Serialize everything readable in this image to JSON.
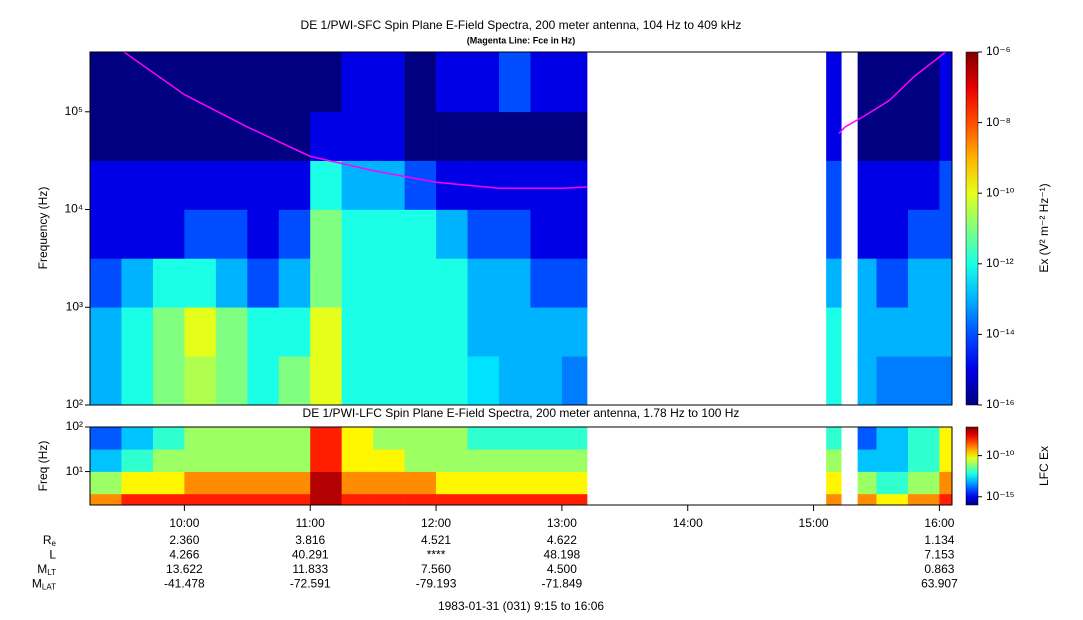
{
  "chart_data": [
    {
      "type": "heatmap",
      "title": "DE 1/PWI-SFC  Spin Plane E-Field Spectra, 200 meter antenna, 104 Hz to 409 kHz",
      "subtitle": "(Magenta Line: Fce in Hz)",
      "y_label": "Frequency (Hz)",
      "xlim": [
        9.25,
        16.1
      ],
      "ylim": [
        100,
        409000
      ],
      "log_y": true,
      "yticks": [
        {
          "value": 100,
          "label": "10²"
        },
        {
          "value": 1000,
          "label": "10³"
        },
        {
          "value": 10000,
          "label": "10⁴"
        },
        {
          "value": 100000,
          "label": "10⁵"
        }
      ],
      "xbins": [
        9.25,
        9.5,
        9.75,
        10,
        10.25,
        10.5,
        10.75,
        11,
        11.25,
        11.5,
        11.75,
        12,
        12.25,
        12.5,
        12.75,
        13,
        13.2,
        15.1,
        15.22,
        15.35,
        15.5,
        15.75,
        16,
        16.1
      ],
      "ybins": [
        100,
        316,
        1000,
        3162,
        10000,
        31623,
        100000,
        409000
      ],
      "z": [
        [
          1e-13,
          1e-12,
          1e-11,
          3e-11,
          1e-11,
          1e-12,
          1e-11,
          1e-10,
          1e-12,
          1e-12,
          1e-12,
          1e-12,
          3e-13,
          1e-13,
          1e-13,
          3e-14,
          null,
          1e-12,
          null,
          1e-13,
          3e-14,
          3e-14,
          3e-14
        ],
        [
          1e-13,
          1e-12,
          1e-11,
          1e-10,
          1e-11,
          1e-12,
          1e-12,
          1e-10,
          1e-12,
          1e-12,
          1e-12,
          1e-12,
          1e-13,
          1e-13,
          1e-13,
          1e-13,
          null,
          1e-12,
          null,
          1e-13,
          1e-13,
          1e-13,
          1e-13
        ],
        [
          1e-14,
          1e-13,
          1e-12,
          1e-12,
          1e-13,
          1e-14,
          1e-13,
          1e-11,
          1e-12,
          1e-12,
          1e-12,
          1e-12,
          1e-13,
          1e-13,
          1e-14,
          1e-14,
          null,
          1e-13,
          null,
          1e-13,
          1e-14,
          1e-13,
          1e-13
        ],
        [
          1e-15,
          1e-15,
          1e-15,
          1e-14,
          1e-14,
          1e-15,
          1e-14,
          1e-11,
          1e-12,
          1e-12,
          1e-12,
          1e-13,
          1e-14,
          1e-14,
          1e-15,
          1e-15,
          null,
          1e-14,
          null,
          1e-15,
          1e-15,
          1e-14,
          1e-14
        ],
        [
          1e-15,
          1e-15,
          1e-15,
          1e-15,
          1e-15,
          1e-15,
          1e-15,
          1e-12,
          1e-13,
          1e-13,
          1e-14,
          1e-15,
          1e-15,
          1e-15,
          1e-15,
          1e-15,
          null,
          1e-14,
          null,
          1e-15,
          1e-15,
          1e-15,
          1e-14
        ],
        [
          1e-16,
          1e-16,
          1e-16,
          1e-16,
          1e-16,
          1e-16,
          1e-16,
          1e-15,
          1e-15,
          1e-15,
          1e-16,
          1e-16,
          1e-16,
          1e-16,
          1e-16,
          1e-16,
          null,
          1e-15,
          null,
          1e-16,
          1e-16,
          1e-16,
          1e-15
        ],
        [
          1e-16,
          1e-16,
          1e-16,
          1e-16,
          1e-16,
          1e-16,
          1e-16,
          1e-16,
          1e-15,
          1e-15,
          1e-16,
          1e-15,
          1e-15,
          1e-14,
          1e-15,
          1e-15,
          null,
          1e-15,
          null,
          1e-16,
          1e-16,
          1e-16,
          1e-15
        ]
      ],
      "colorbar": {
        "label": "Ex (V² m⁻² Hz⁻¹)",
        "lim": [
          1e-16,
          1e-06
        ],
        "log": true,
        "ticks": [
          {
            "value": 1e-16,
            "label": "10⁻¹⁶"
          },
          {
            "value": 1e-14,
            "label": "10⁻¹⁴"
          },
          {
            "value": 1e-12,
            "label": "10⁻¹²"
          },
          {
            "value": 1e-10,
            "label": "10⁻¹⁰"
          },
          {
            "value": 1e-08,
            "label": "10⁻⁸"
          },
          {
            "value": 1e-06,
            "label": "10⁻⁶"
          }
        ]
      },
      "series": [
        {
          "color": "#ff00ff",
          "x": [
            9.52,
            10,
            10.5,
            11,
            11.5,
            12,
            12.5,
            13,
            13.2,
            15.15,
            15.2,
            15.25,
            15.4,
            15.6,
            15.8,
            16.05
          ],
          "values": [
            409000,
            150000,
            70000,
            35000,
            25000,
            19000,
            16500,
            16500,
            17000,
            null,
            60000,
            70000,
            90000,
            130000,
            230000,
            409000
          ]
        }
      ]
    },
    {
      "type": "heatmap",
      "title": "DE 1/PWI-LFC  Spin Plane E-Field Spectra, 200 meter antenna, 1.78 Hz to 100 Hz",
      "y_label": "Freq (Hz)",
      "xlim": [
        9.25,
        16.1
      ],
      "xticks": [
        {
          "value": 10,
          "label": "10:00"
        },
        {
          "value": 11,
          "label": "11:00"
        },
        {
          "value": 12,
          "label": "12:00"
        },
        {
          "value": 13,
          "label": "13:00"
        },
        {
          "value": 14,
          "label": "14:00"
        },
        {
          "value": 15,
          "label": "15:00"
        },
        {
          "value": 16,
          "label": "16:00"
        }
      ],
      "ylim": [
        1.78,
        100
      ],
      "log_y": true,
      "yticks": [
        {
          "value": 10,
          "label": "10¹"
        },
        {
          "value": 100,
          "label": "10²"
        }
      ],
      "xbins": [
        9.25,
        9.5,
        9.75,
        10,
        10.25,
        10.5,
        10.75,
        11,
        11.25,
        11.5,
        11.75,
        12,
        12.25,
        12.5,
        12.75,
        13,
        13.2,
        15.1,
        15.22,
        15.35,
        15.5,
        15.75,
        16,
        16.1
      ],
      "ybins": [
        1.78,
        3.16,
        10,
        31.6,
        100
      ],
      "z": [
        [
          1e-09,
          1e-08,
          1e-08,
          1e-08,
          1e-08,
          1e-08,
          1e-08,
          1e-07,
          1e-08,
          1e-08,
          1e-08,
          1e-08,
          1e-08,
          1e-08,
          1e-08,
          1e-08,
          null,
          1e-09,
          null,
          1e-09,
          1e-10,
          1e-09,
          1e-08
        ],
        [
          1e-11,
          1e-10,
          1e-10,
          1e-09,
          1e-09,
          1e-09,
          1e-09,
          1e-07,
          1e-09,
          1e-09,
          1e-09,
          1e-10,
          1e-10,
          1e-10,
          1e-10,
          1e-10,
          null,
          1e-10,
          null,
          1e-11,
          1e-12,
          1e-11,
          1e-09
        ],
        [
          1e-13,
          1e-12,
          1e-11,
          1e-11,
          1e-11,
          1e-11,
          1e-11,
          1e-08,
          1e-10,
          1e-10,
          1e-11,
          1e-11,
          1e-11,
          1e-11,
          1e-11,
          1e-11,
          null,
          1e-11,
          null,
          1e-13,
          1e-13,
          1e-12,
          1e-10
        ],
        [
          1e-14,
          1e-13,
          1e-12,
          1e-11,
          1e-11,
          1e-11,
          1e-11,
          1e-08,
          1e-10,
          1e-11,
          1e-11,
          1e-11,
          1e-12,
          1e-12,
          1e-12,
          1e-12,
          null,
          1e-12,
          null,
          1e-14,
          1e-13,
          1e-12,
          1e-10
        ]
      ],
      "colorbar": {
        "label": "LFC Ex",
        "lim": [
          1e-16,
          3e-07
        ],
        "log": true,
        "ticks": [
          {
            "value": 1e-15,
            "label": "10⁻¹⁵"
          },
          {
            "value": 1e-10,
            "label": "10⁻¹⁰"
          }
        ]
      }
    }
  ],
  "ephemeris": {
    "times": [
      10,
      11,
      12,
      13,
      16
    ],
    "rows": [
      {
        "label": "R",
        "sub": "e",
        "values": [
          "2.360",
          "3.816",
          "4.521",
          "4.622",
          "1.134"
        ]
      },
      {
        "label": "L",
        "values": [
          "4.266",
          "40.291",
          "****",
          "48.198",
          "7.153"
        ]
      },
      {
        "label": "M",
        "sub": "LT",
        "values": [
          "13.622",
          "11.833",
          "7.560",
          "4.500",
          "0.863"
        ]
      },
      {
        "label": "M",
        "sub": "LAT",
        "values": [
          "-41.478",
          "-72.591",
          "-79.193",
          "-71.849",
          "63.907"
        ]
      }
    ],
    "footer": "1983-01-31 (031) 9:15 to 16:06"
  }
}
